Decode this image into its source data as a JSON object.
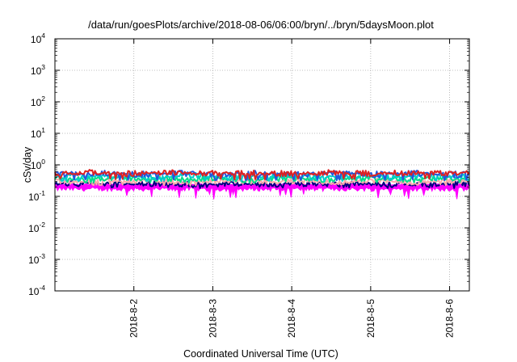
{
  "chart_data": {
    "type": "line",
    "title": "/data/run/goesPlots/archive/2018-08-06/06:00/bryn/../bryn/5daysMoon.plot",
    "xlabel": "Coordinated Universal Time (UTC)",
    "ylabel": "cSv/day",
    "y_scale": "log",
    "ylim": [
      0.0001,
      10000
    ],
    "y_ticks": [
      {
        "value": 0.0001,
        "base": "10",
        "exp": "-4"
      },
      {
        "value": 0.001,
        "base": "10",
        "exp": "-3"
      },
      {
        "value": 0.01,
        "base": "10",
        "exp": "-2"
      },
      {
        "value": 0.1,
        "base": "10",
        "exp": "-1"
      },
      {
        "value": 1,
        "base": "10",
        "exp": "0"
      },
      {
        "value": 10,
        "base": "10",
        "exp": "1"
      },
      {
        "value": 100,
        "base": "10",
        "exp": "2"
      },
      {
        "value": 1000,
        "base": "10",
        "exp": "3"
      },
      {
        "value": 10000,
        "base": "10",
        "exp": "4"
      }
    ],
    "xlim": [
      "2018-08-01 00:00",
      "2018-08-06 06:00"
    ],
    "x_ticks": [
      {
        "value": "2018-08-02 00:00",
        "label": "2018-8-2"
      },
      {
        "value": "2018-08-03 00:00",
        "label": "2018-8-3"
      },
      {
        "value": "2018-08-04 00:00",
        "label": "2018-8-4"
      },
      {
        "value": "2018-08-05 00:00",
        "label": "2018-8-5"
      },
      {
        "value": "2018-08-06 00:00",
        "label": "2018-8-6"
      }
    ],
    "grid": true,
    "series": [
      {
        "color": "#ff00ff",
        "baseline": 0.17,
        "values_range": [
          0.08,
          0.24
        ]
      },
      {
        "color": "#000080",
        "baseline": 0.25,
        "values_range": [
          0.18,
          0.3
        ]
      },
      {
        "color": "#ffaaaa",
        "baseline": 0.3,
        "values_range": [
          0.22,
          0.36
        ]
      },
      {
        "color": "#00dd88",
        "baseline": 0.36,
        "values_range": [
          0.26,
          0.44
        ]
      },
      {
        "color": "#00cccc",
        "baseline": 0.44,
        "values_range": [
          0.3,
          0.55
        ]
      },
      {
        "color": "#2255dd",
        "baseline": 0.52,
        "values_range": [
          0.32,
          0.68
        ]
      },
      {
        "color": "#dd2222",
        "baseline": 0.55,
        "values_range": [
          0.34,
          0.8
        ]
      }
    ]
  }
}
